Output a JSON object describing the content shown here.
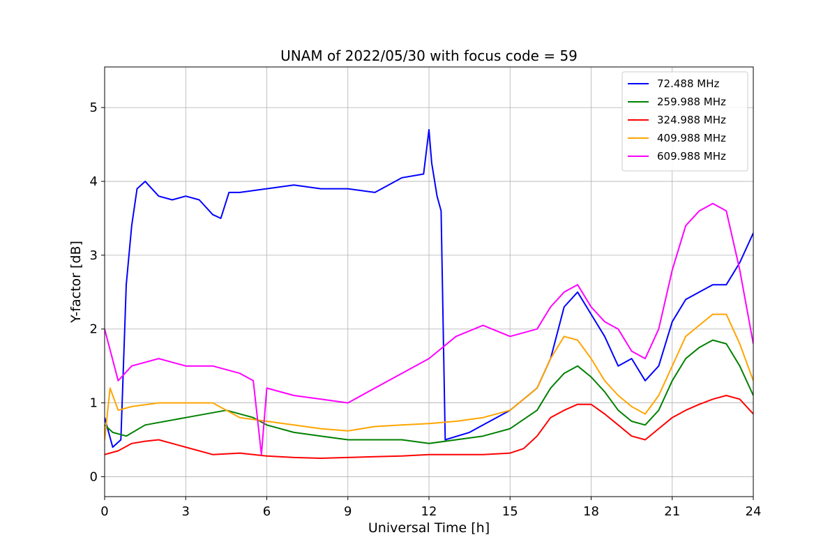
{
  "chart_data": {
    "type": "line",
    "title": "UNAM of 2022/05/30 with focus code = 59",
    "xlabel": "Universal Time [h]",
    "ylabel": "Y-factor [dB]",
    "xlim": [
      0,
      24
    ],
    "ylim": [
      -0.27,
      5.55
    ],
    "xticks": [
      0,
      3,
      6,
      9,
      12,
      15,
      18,
      21,
      24
    ],
    "yticks": [
      0,
      1,
      2,
      3,
      4,
      5
    ],
    "grid": true,
    "legend_position": "top-right",
    "series": [
      {
        "name": " 72.488 MHz",
        "color": "#0000ff",
        "points": [
          [
            0.0,
            0.8
          ],
          [
            0.3,
            0.4
          ],
          [
            0.6,
            0.5
          ],
          [
            0.8,
            2.6
          ],
          [
            1.0,
            3.4
          ],
          [
            1.2,
            3.9
          ],
          [
            1.5,
            4.0
          ],
          [
            2.0,
            3.8
          ],
          [
            2.5,
            3.75
          ],
          [
            3.0,
            3.8
          ],
          [
            3.5,
            3.75
          ],
          [
            4.0,
            3.55
          ],
          [
            4.3,
            3.5
          ],
          [
            4.6,
            3.85
          ],
          [
            5.0,
            3.85
          ],
          [
            6.0,
            3.9
          ],
          [
            7.0,
            3.95
          ],
          [
            8.0,
            3.9
          ],
          [
            9.0,
            3.9
          ],
          [
            10.0,
            3.85
          ],
          [
            11.0,
            4.05
          ],
          [
            11.8,
            4.1
          ],
          [
            12.0,
            4.7
          ],
          [
            12.1,
            4.25
          ],
          [
            12.3,
            3.8
          ],
          [
            12.45,
            3.6
          ],
          [
            12.6,
            0.5
          ],
          [
            13.5,
            0.6
          ],
          [
            14.0,
            0.7
          ],
          [
            15.0,
            0.9
          ],
          [
            16.0,
            1.2
          ],
          [
            16.5,
            1.6
          ],
          [
            17.0,
            2.3
          ],
          [
            17.5,
            2.5
          ],
          [
            18.0,
            2.2
          ],
          [
            18.5,
            1.9
          ],
          [
            19.0,
            1.5
          ],
          [
            19.5,
            1.6
          ],
          [
            20.0,
            1.3
          ],
          [
            20.5,
            1.5
          ],
          [
            21.0,
            2.1
          ],
          [
            21.5,
            2.4
          ],
          [
            22.0,
            2.5
          ],
          [
            22.5,
            2.6
          ],
          [
            23.0,
            2.6
          ],
          [
            23.5,
            2.9
          ],
          [
            24.0,
            3.3
          ]
        ]
      },
      {
        "name": " 259.988 MHz",
        "color": "#008000",
        "points": [
          [
            0.0,
            0.7
          ],
          [
            0.3,
            0.6
          ],
          [
            0.8,
            0.55
          ],
          [
            1.5,
            0.7
          ],
          [
            3.0,
            0.8
          ],
          [
            4.5,
            0.9
          ],
          [
            5.5,
            0.8
          ],
          [
            6.0,
            0.7
          ],
          [
            7.0,
            0.6
          ],
          [
            8.0,
            0.55
          ],
          [
            9.0,
            0.5
          ],
          [
            10.0,
            0.5
          ],
          [
            11.0,
            0.5
          ],
          [
            12.0,
            0.45
          ],
          [
            13.0,
            0.5
          ],
          [
            14.0,
            0.55
          ],
          [
            15.0,
            0.65
          ],
          [
            16.0,
            0.9
          ],
          [
            16.5,
            1.2
          ],
          [
            17.0,
            1.4
          ],
          [
            17.5,
            1.5
          ],
          [
            18.0,
            1.35
          ],
          [
            18.5,
            1.15
          ],
          [
            19.0,
            0.9
          ],
          [
            19.5,
            0.75
          ],
          [
            20.0,
            0.7
          ],
          [
            20.5,
            0.9
          ],
          [
            21.0,
            1.3
          ],
          [
            21.5,
            1.6
          ],
          [
            22.0,
            1.75
          ],
          [
            22.5,
            1.85
          ],
          [
            23.0,
            1.8
          ],
          [
            23.5,
            1.5
          ],
          [
            24.0,
            1.1
          ]
        ]
      },
      {
        "name": " 324.988 MHz",
        "color": "#ff0000",
        "points": [
          [
            0.0,
            0.3
          ],
          [
            0.5,
            0.35
          ],
          [
            1.0,
            0.45
          ],
          [
            1.5,
            0.48
          ],
          [
            2.0,
            0.5
          ],
          [
            3.0,
            0.4
          ],
          [
            4.0,
            0.3
          ],
          [
            5.0,
            0.32
          ],
          [
            6.0,
            0.28
          ],
          [
            7.0,
            0.26
          ],
          [
            8.0,
            0.25
          ],
          [
            9.0,
            0.26
          ],
          [
            10.0,
            0.27
          ],
          [
            11.0,
            0.28
          ],
          [
            12.0,
            0.3
          ],
          [
            13.0,
            0.3
          ],
          [
            14.0,
            0.3
          ],
          [
            15.0,
            0.32
          ],
          [
            15.5,
            0.38
          ],
          [
            16.0,
            0.55
          ],
          [
            16.5,
            0.8
          ],
          [
            17.0,
            0.9
          ],
          [
            17.5,
            0.98
          ],
          [
            18.0,
            0.98
          ],
          [
            18.5,
            0.85
          ],
          [
            19.0,
            0.7
          ],
          [
            19.5,
            0.55
          ],
          [
            20.0,
            0.5
          ],
          [
            20.5,
            0.65
          ],
          [
            21.0,
            0.8
          ],
          [
            21.5,
            0.9
          ],
          [
            22.0,
            0.98
          ],
          [
            22.5,
            1.05
          ],
          [
            23.0,
            1.1
          ],
          [
            23.5,
            1.05
          ],
          [
            24.0,
            0.85
          ]
        ]
      },
      {
        "name": " 409.988 MHz",
        "color": "#ffa500",
        "points": [
          [
            0.0,
            0.5
          ],
          [
            0.2,
            1.2
          ],
          [
            0.5,
            0.9
          ],
          [
            1.0,
            0.95
          ],
          [
            2.0,
            1.0
          ],
          [
            3.0,
            1.0
          ],
          [
            4.0,
            1.0
          ],
          [
            5.0,
            0.8
          ],
          [
            6.0,
            0.75
          ],
          [
            7.0,
            0.7
          ],
          [
            8.0,
            0.65
          ],
          [
            9.0,
            0.62
          ],
          [
            10.0,
            0.68
          ],
          [
            11.0,
            0.7
          ],
          [
            12.0,
            0.72
          ],
          [
            13.0,
            0.75
          ],
          [
            14.0,
            0.8
          ],
          [
            15.0,
            0.9
          ],
          [
            16.0,
            1.2
          ],
          [
            16.5,
            1.6
          ],
          [
            17.0,
            1.9
          ],
          [
            17.5,
            1.85
          ],
          [
            18.0,
            1.6
          ],
          [
            18.5,
            1.3
          ],
          [
            19.0,
            1.1
          ],
          [
            19.5,
            0.95
          ],
          [
            20.0,
            0.85
          ],
          [
            20.5,
            1.1
          ],
          [
            21.0,
            1.5
          ],
          [
            21.5,
            1.9
          ],
          [
            22.0,
            2.05
          ],
          [
            22.5,
            2.2
          ],
          [
            23.0,
            2.2
          ],
          [
            23.5,
            1.8
          ],
          [
            24.0,
            1.3
          ]
        ]
      },
      {
        "name": " 609.988 MHz",
        "color": "#ff00ff",
        "points": [
          [
            0.0,
            2.0
          ],
          [
            0.5,
            1.3
          ],
          [
            1.0,
            1.5
          ],
          [
            2.0,
            1.6
          ],
          [
            3.0,
            1.5
          ],
          [
            4.0,
            1.5
          ],
          [
            5.0,
            1.4
          ],
          [
            5.5,
            1.3
          ],
          [
            5.8,
            0.3
          ],
          [
            6.0,
            1.2
          ],
          [
            7.0,
            1.1
          ],
          [
            8.0,
            1.05
          ],
          [
            9.0,
            1.0
          ],
          [
            10.0,
            1.2
          ],
          [
            11.0,
            1.4
          ],
          [
            12.0,
            1.6
          ],
          [
            13.0,
            1.9
          ],
          [
            14.0,
            2.05
          ],
          [
            15.0,
            1.9
          ],
          [
            16.0,
            2.0
          ],
          [
            16.5,
            2.3
          ],
          [
            17.0,
            2.5
          ],
          [
            17.5,
            2.6
          ],
          [
            18.0,
            2.3
          ],
          [
            18.5,
            2.1
          ],
          [
            19.0,
            2.0
          ],
          [
            19.5,
            1.7
          ],
          [
            20.0,
            1.6
          ],
          [
            20.5,
            2.0
          ],
          [
            21.0,
            2.8
          ],
          [
            21.5,
            3.4
          ],
          [
            22.0,
            3.6
          ],
          [
            22.5,
            3.7
          ],
          [
            23.0,
            3.6
          ],
          [
            23.5,
            2.8
          ],
          [
            24.0,
            1.8
          ]
        ]
      }
    ]
  }
}
